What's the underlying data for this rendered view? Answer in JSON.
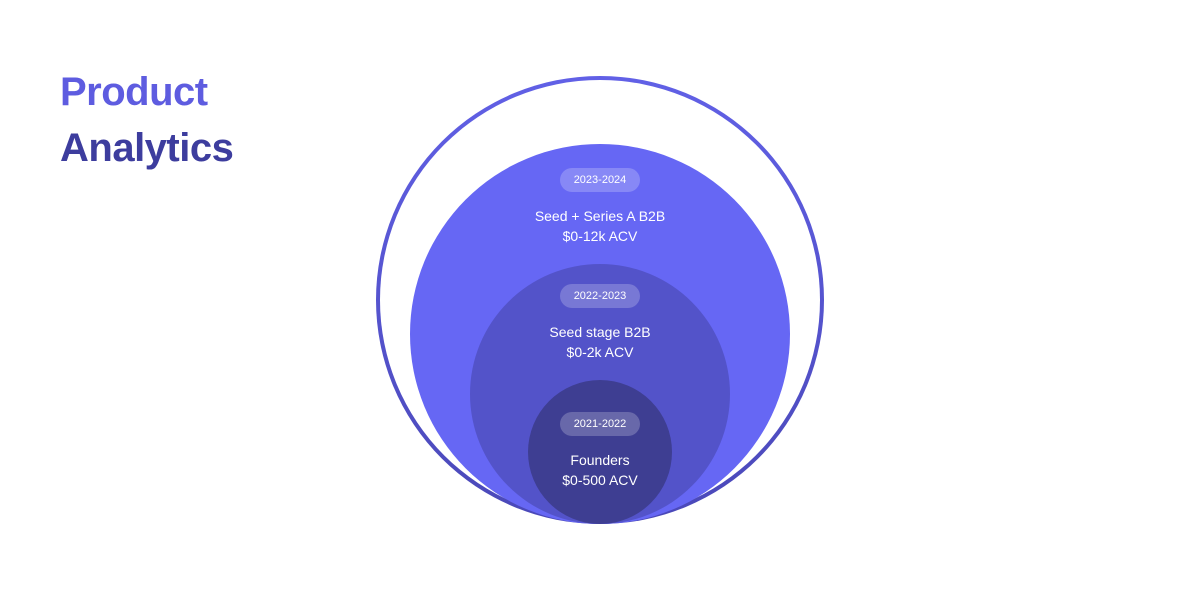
{
  "header": {
    "title_line_1": "Product",
    "title_line_2": "Analytics"
  },
  "colors": {
    "title_primary": "#5e5ce0",
    "title_secondary": "#3d3d9e",
    "outer_ring": "#5b59d6",
    "large_circle": "#6667f4",
    "medium_circle": "#5353c9",
    "small_circle": "#3e3e92"
  },
  "segments": [
    {
      "years": "2023-2024",
      "name": "Seed + Series A B2B",
      "acv": "$0-12k ACV"
    },
    {
      "years": "2022-2023",
      "name": "Seed stage B2B",
      "acv": "$0-2k ACV"
    },
    {
      "years": "2021-2022",
      "name": "Founders",
      "acv": "$0-500 ACV"
    }
  ]
}
